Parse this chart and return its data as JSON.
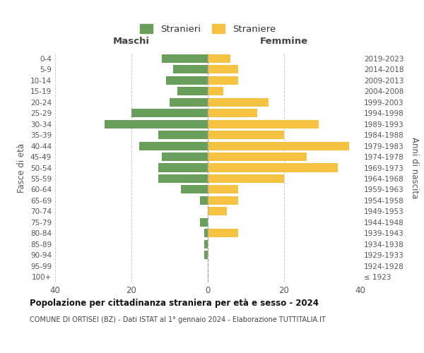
{
  "age_groups": [
    "100+",
    "95-99",
    "90-94",
    "85-89",
    "80-84",
    "75-79",
    "70-74",
    "65-69",
    "60-64",
    "55-59",
    "50-54",
    "45-49",
    "40-44",
    "35-39",
    "30-34",
    "25-29",
    "20-24",
    "15-19",
    "10-14",
    "5-9",
    "0-4"
  ],
  "birth_years": [
    "≤ 1923",
    "1924-1928",
    "1929-1933",
    "1934-1938",
    "1939-1943",
    "1944-1948",
    "1949-1953",
    "1954-1958",
    "1959-1963",
    "1964-1968",
    "1969-1973",
    "1974-1978",
    "1979-1983",
    "1984-1988",
    "1989-1993",
    "1994-1998",
    "1999-2003",
    "2004-2008",
    "2009-2013",
    "2014-2018",
    "2019-2023"
  ],
  "maschi": [
    0,
    0,
    1,
    1,
    1,
    2,
    0,
    2,
    7,
    13,
    13,
    12,
    18,
    13,
    27,
    20,
    10,
    8,
    11,
    9,
    12
  ],
  "femmine": [
    0,
    0,
    0,
    0,
    8,
    0,
    5,
    8,
    8,
    20,
    34,
    26,
    37,
    20,
    29,
    13,
    16,
    4,
    8,
    8,
    6
  ],
  "color_maschi": "#6a9e5b",
  "color_femmine": "#f5c242",
  "title": "Popolazione per cittadinanza straniera per età e sesso - 2024",
  "subtitle": "COMUNE DI ORTISEI (BZ) - Dati ISTAT al 1° gennaio 2024 - Elaborazione TUTTITALIA.IT",
  "ylabel_left": "Fasce di età",
  "ylabel_right": "Anni di nascita",
  "label_maschi": "Maschi",
  "label_femmine": "Femmine",
  "legend_maschi": "Stranieri",
  "legend_femmine": "Straniere",
  "xlim": 40,
  "background_color": "#ffffff",
  "grid_color": "#cccccc"
}
